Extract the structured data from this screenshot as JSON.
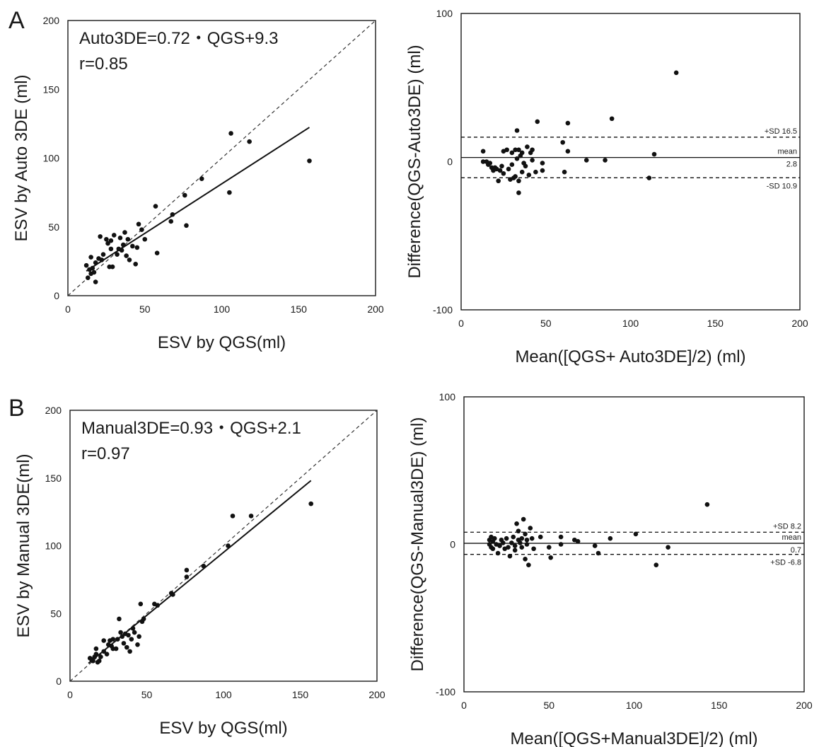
{
  "panel_letters": [
    "A",
    "B"
  ],
  "chart_data": [
    {
      "type": "scatter",
      "xlabel": "ESV by QGS(ml)",
      "ylabel": "ESV by Auto 3DE (ml)",
      "xlim": [
        0,
        200
      ],
      "ylim": [
        0,
        200
      ],
      "x_ticks": [
        0,
        50,
        100,
        150,
        200
      ],
      "y_ticks": [
        0,
        50,
        100,
        150,
        200
      ],
      "annotations": [
        "Auto3DE=0.72・QGS+9.3",
        "r=0.85"
      ],
      "identity_line": true,
      "regression": {
        "slope": 0.72,
        "intercept": 9.3,
        "x_range": [
          12,
          157
        ]
      },
      "points": [
        [
          12,
          22
        ],
        [
          13,
          13
        ],
        [
          14,
          19
        ],
        [
          15,
          28
        ],
        [
          15,
          16
        ],
        [
          16,
          20
        ],
        [
          17,
          17
        ],
        [
          18,
          10
        ],
        [
          18,
          24
        ],
        [
          20,
          27
        ],
        [
          21,
          43
        ],
        [
          22,
          26
        ],
        [
          23,
          30
        ],
        [
          25,
          41
        ],
        [
          26,
          38
        ],
        [
          27,
          21
        ],
        [
          28,
          34
        ],
        [
          28,
          40
        ],
        [
          29,
          21
        ],
        [
          30,
          44
        ],
        [
          32,
          30
        ],
        [
          33,
          34
        ],
        [
          34,
          42
        ],
        [
          35,
          33
        ],
        [
          36,
          37
        ],
        [
          37,
          46
        ],
        [
          38,
          29
        ],
        [
          39,
          41
        ],
        [
          40,
          26
        ],
        [
          42,
          36
        ],
        [
          44,
          23
        ],
        [
          45,
          35
        ],
        [
          46,
          52
        ],
        [
          48,
          48
        ],
        [
          50,
          41
        ],
        [
          57,
          65
        ],
        [
          58,
          31
        ],
        [
          67,
          54
        ],
        [
          68,
          59
        ],
        [
          76,
          73
        ],
        [
          77,
          51
        ],
        [
          87,
          85
        ],
        [
          105,
          75
        ],
        [
          106,
          118
        ],
        [
          118,
          112
        ],
        [
          157,
          98
        ]
      ]
    },
    {
      "type": "scatter",
      "xlabel": "Mean([QGS+ Auto3DE]/2) (ml)",
      "ylabel": "Difference(QGS-Auto3DE) (ml)",
      "xlim": [
        0,
        200
      ],
      "ylim": [
        -100,
        100
      ],
      "x_ticks": [
        0,
        50,
        100,
        150,
        200
      ],
      "y_ticks": [
        -100,
        0,
        100
      ],
      "limit_lines": [
        {
          "label": "+SD 16.5",
          "y": 16.5,
          "style": "dashed"
        },
        {
          "label": "mean",
          "value": "2.8",
          "y": 2.8,
          "style": "solid"
        },
        {
          "label": "-SD 10.9",
          "y": -10.9,
          "style": "dashed"
        }
      ],
      "points": [
        [
          13,
          7
        ],
        [
          13,
          0
        ],
        [
          15,
          0
        ],
        [
          16,
          -2
        ],
        [
          17,
          -1
        ],
        [
          18,
          -4
        ],
        [
          19,
          -6
        ],
        [
          20,
          -4
        ],
        [
          21,
          -5
        ],
        [
          22,
          -13
        ],
        [
          23,
          -6
        ],
        [
          24,
          -3
        ],
        [
          25,
          -8
        ],
        [
          25,
          7
        ],
        [
          27,
          8
        ],
        [
          28,
          -5
        ],
        [
          29,
          -12
        ],
        [
          30,
          -2
        ],
        [
          30,
          6
        ],
        [
          31,
          -11
        ],
        [
          32,
          -10
        ],
        [
          32,
          8
        ],
        [
          33,
          21
        ],
        [
          33,
          2
        ],
        [
          34,
          8
        ],
        [
          34,
          -13
        ],
        [
          34,
          -21
        ],
        [
          35,
          4
        ],
        [
          36,
          -7
        ],
        [
          36,
          6
        ],
        [
          37,
          -1
        ],
        [
          38,
          -3
        ],
        [
          39,
          10
        ],
        [
          40,
          -9
        ],
        [
          41,
          6
        ],
        [
          42,
          1
        ],
        [
          42,
          8
        ],
        [
          44,
          -7
        ],
        [
          45,
          27
        ],
        [
          48,
          -6
        ],
        [
          48,
          -1
        ],
        [
          60,
          13
        ],
        [
          61,
          -7
        ],
        [
          63,
          26
        ],
        [
          63,
          7
        ],
        [
          74,
          1
        ],
        [
          85,
          1
        ],
        [
          89,
          29
        ],
        [
          111,
          -11
        ],
        [
          114,
          5
        ],
        [
          127,
          60
        ]
      ]
    },
    {
      "type": "scatter",
      "xlabel": "ESV by QGS(ml)",
      "ylabel": "ESV by Manual 3DE(ml)",
      "xlim": [
        0,
        200
      ],
      "ylim": [
        0,
        200
      ],
      "x_ticks": [
        0,
        50,
        100,
        150,
        200
      ],
      "y_ticks": [
        0,
        50,
        100,
        150,
        200
      ],
      "annotations": [
        "Manual3DE=0.93・QGS+2.1",
        "r=0.97"
      ],
      "identity_line": true,
      "regression": {
        "slope": 0.93,
        "intercept": 2.1,
        "x_range": [
          12,
          157
        ]
      },
      "points": [
        [
          13,
          17
        ],
        [
          14,
          16
        ],
        [
          15,
          15
        ],
        [
          16,
          18
        ],
        [
          17,
          20
        ],
        [
          17,
          24
        ],
        [
          18,
          14
        ],
        [
          19,
          15
        ],
        [
          20,
          18
        ],
        [
          22,
          22
        ],
        [
          22,
          30
        ],
        [
          24,
          20
        ],
        [
          25,
          27
        ],
        [
          26,
          30
        ],
        [
          27,
          26
        ],
        [
          28,
          31
        ],
        [
          28,
          24
        ],
        [
          30,
          24
        ],
        [
          31,
          31
        ],
        [
          32,
          46
        ],
        [
          33,
          36
        ],
        [
          34,
          33
        ],
        [
          35,
          28
        ],
        [
          36,
          35
        ],
        [
          37,
          25
        ],
        [
          38,
          34
        ],
        [
          39,
          22
        ],
        [
          40,
          31
        ],
        [
          41,
          39
        ],
        [
          42,
          36
        ],
        [
          44,
          27
        ],
        [
          45,
          33
        ],
        [
          46,
          57
        ],
        [
          47,
          44
        ],
        [
          48,
          46
        ],
        [
          55,
          57
        ],
        [
          57,
          56
        ],
        [
          66,
          65
        ],
        [
          67,
          64
        ],
        [
          76,
          82
        ],
        [
          76,
          77
        ],
        [
          87,
          85
        ],
        [
          103,
          100
        ],
        [
          106,
          122
        ],
        [
          118,
          122
        ],
        [
          157,
          131
        ]
      ]
    },
    {
      "type": "scatter",
      "xlabel": "Mean([QGS+Manual3DE]/2) (ml)",
      "ylabel": "Difference(QGS-Manual3DE) (ml)",
      "xlim": [
        0,
        200
      ],
      "ylim": [
        -100,
        100
      ],
      "x_ticks": [
        0,
        50,
        100,
        150,
        200
      ],
      "y_ticks": [
        -100,
        0,
        100
      ],
      "limit_lines": [
        {
          "label": "+SD 8.2",
          "y": 8.2,
          "style": "dashed"
        },
        {
          "label": "mean",
          "value": "0.7",
          "y": 0.7,
          "style": "solid"
        },
        {
          "label": "+SD -6.8",
          "y": -6.8,
          "style": "dashed"
        }
      ],
      "points": [
        [
          15,
          0
        ],
        [
          15,
          3
        ],
        [
          16,
          -2
        ],
        [
          16,
          5
        ],
        [
          17,
          2
        ],
        [
          17,
          -3
        ],
        [
          18,
          4
        ],
        [
          19,
          0
        ],
        [
          20,
          -6
        ],
        [
          21,
          -1
        ],
        [
          22,
          3
        ],
        [
          23,
          1
        ],
        [
          24,
          -3
        ],
        [
          25,
          4
        ],
        [
          26,
          -2
        ],
        [
          27,
          -8
        ],
        [
          28,
          1
        ],
        [
          29,
          5
        ],
        [
          30,
          -1
        ],
        [
          30,
          -4
        ],
        [
          31,
          14
        ],
        [
          32,
          3
        ],
        [
          32,
          9
        ],
        [
          33,
          1
        ],
        [
          34,
          -2
        ],
        [
          34,
          4
        ],
        [
          35,
          17
        ],
        [
          36,
          -10
        ],
        [
          36,
          7
        ],
        [
          37,
          0
        ],
        [
          37,
          3
        ],
        [
          38,
          -14
        ],
        [
          39,
          11
        ],
        [
          40,
          4
        ],
        [
          41,
          -3
        ],
        [
          45,
          5
        ],
        [
          50,
          -2
        ],
        [
          51,
          -9
        ],
        [
          57,
          5
        ],
        [
          57,
          0
        ],
        [
          65,
          3
        ],
        [
          67,
          2
        ],
        [
          77,
          -1
        ],
        [
          79,
          -6
        ],
        [
          86,
          4
        ],
        [
          101,
          7
        ],
        [
          113,
          -14
        ],
        [
          120,
          -2
        ],
        [
          143,
          27
        ]
      ]
    }
  ]
}
